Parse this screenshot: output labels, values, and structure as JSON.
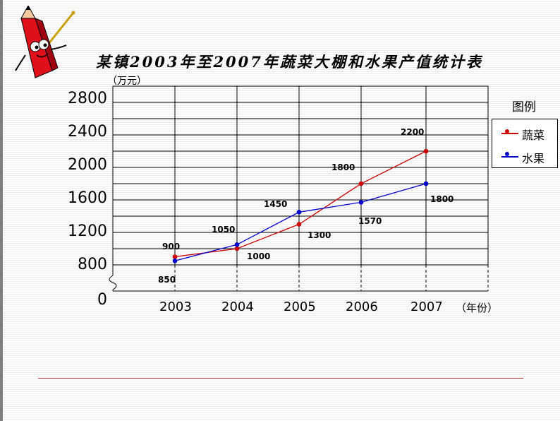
{
  "chart_data": {
    "type": "line",
    "title": "某镇2003年至2007年蔬菜大棚和水果产值统计表",
    "y_unit": "（万元）",
    "x_unit": "（年份）",
    "categories": [
      "2003",
      "2004",
      "2005",
      "2006",
      "2007"
    ],
    "y_ticks": [
      "0",
      "800",
      "1200",
      "1600",
      "2000",
      "2400",
      "2800"
    ],
    "y_axis_broken": true,
    "ylim": [
      800,
      2800
    ],
    "grid": true,
    "legend_title": "图例",
    "legend_position": "right",
    "series": [
      {
        "name": "蔬菜",
        "color": "#cc0000",
        "values": [
          900,
          1000,
          1300,
          1800,
          2200
        ],
        "labels": [
          "900",
          "1000",
          "1300",
          "1800",
          "2200"
        ]
      },
      {
        "name": "水果",
        "color": "#0000cc",
        "values": [
          850,
          1050,
          1450,
          1570,
          1800
        ],
        "labels": [
          "850",
          "1050",
          "1450",
          "1570",
          "1800"
        ]
      }
    ]
  },
  "mascot": {
    "icon": "pencil-mascot-icon"
  }
}
